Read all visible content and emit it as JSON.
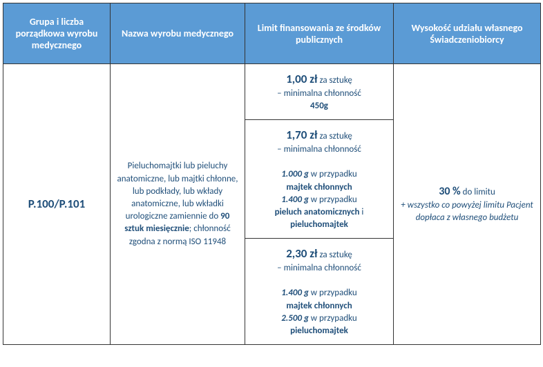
{
  "headers": {
    "col1": "Grupa i liczba porządkowa wyrobu medycznego",
    "col2": "Nazwa wyrobu medycznego",
    "col3": "Limit finansowania ze środków publicznych",
    "col4": "Wysokość udziału własnego Świadczeniobiorcy"
  },
  "body": {
    "code": "P.100/P.101",
    "description_pre": "Pieluchomajtki lub pieluchy anatomiczne, lub majtki chłonne, lub podkłady, lub wkłady anatomiczne, lub wkładki urologiczne zamiennie do ",
    "description_bold": "90 sztuk miesięcznie",
    "description_post": "; chłonność zgodna z normą ISO 11948",
    "limit1": {
      "price": "1,00 zł",
      "per": " za sztukę",
      "line2": "– minimalna chłonność",
      "bold": "450g"
    },
    "limit2": {
      "price": "1,70 zł",
      "per": " za sztukę",
      "line2": "– minimalna chłonność",
      "g1": "1.000 g",
      "case1_txt": " w przypadku",
      "case1_bold": "majtek chłonnych",
      "g2": "1.400 g",
      "case2_txt": " w przypadku",
      "case2_bold1": "pieluch anatomicznych",
      "case2_and": " i",
      "case2_bold2": "pieluchomajtek"
    },
    "limit3": {
      "price": "2,30 zł",
      "per": " za sztukę",
      "line2": "– minimalna chłonność",
      "g1": "1.400 g",
      "case1_txt": " w przypadku",
      "case1_bold": "majtek chłonnych",
      "g2": "2.500 g",
      "case2_txt": " w przypadku",
      "case2_bold": "pieluchomajtek"
    },
    "share": {
      "pct": "30 %",
      "to_limit": " do limitu",
      "note": "+ wszystko co powyżej limitu Pacjent dopłaca z własnego budżetu"
    }
  }
}
